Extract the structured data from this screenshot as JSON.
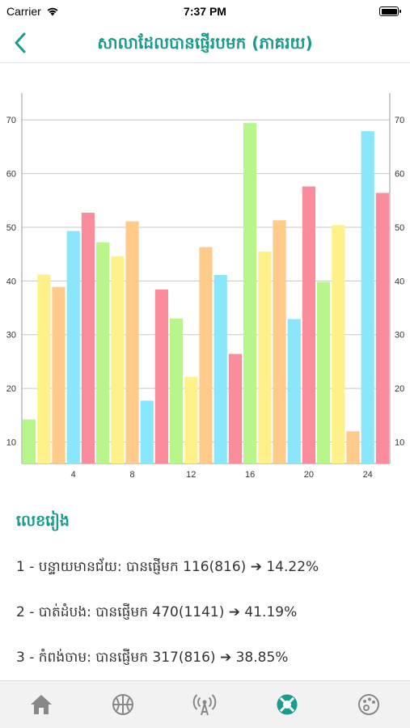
{
  "status": {
    "carrier": "Carrier",
    "time": "7:37 PM"
  },
  "nav": {
    "title": "សាលាដែលបានផ្ញើរបមក (ភាគរយ)"
  },
  "section_title": "លេខរៀង",
  "ranking": [
    {
      "text": "1 - បន្ទាយមានជ័យ: បានផ្ញើមក 116(816) ➔ 14.22%"
    },
    {
      "text": "2 - បាត់ដំបង: បានផ្ញើមក 470(1141) ➔ 41.19%"
    },
    {
      "text": "3 - កំពង់ចាម: បានផ្ញើមក 317(816) ➔ 38.85%"
    }
  ],
  "tabs": [
    {
      "name": "home-icon"
    },
    {
      "name": "basketball-icon"
    },
    {
      "name": "antenna-icon"
    },
    {
      "name": "lifebuoy-icon",
      "active": true
    },
    {
      "name": "palette-icon"
    }
  ],
  "colors": {
    "accent": "#1a9b8e",
    "inactive_tab": "#888888"
  },
  "chart_data": {
    "type": "bar",
    "x": [
      1,
      2,
      3,
      4,
      5,
      6,
      7,
      8,
      9,
      10,
      11,
      12,
      13,
      14,
      15,
      16,
      17,
      18,
      19,
      20,
      21,
      22,
      23,
      24,
      25
    ],
    "values": [
      14.2,
      41.2,
      38.9,
      49.3,
      52.7,
      47.2,
      44.6,
      51.1,
      17.7,
      38.4,
      33.0,
      22.1,
      46.3,
      41.1,
      26.4,
      69.4,
      45.5,
      51.3,
      32.9,
      57.6,
      39.8,
      50.4,
      12.0,
      67.9,
      56.4
    ],
    "colors": [
      "#b8f58a",
      "#fff18a",
      "#ffcb8a",
      "#8ae6fa",
      "#fa8c9c"
    ],
    "xticks": [
      4,
      8,
      12,
      16,
      20,
      24
    ],
    "yticks": [
      10,
      20,
      30,
      40,
      50,
      60,
      70
    ],
    "ylim": [
      6,
      75
    ],
    "grid": true,
    "legend": "none"
  }
}
